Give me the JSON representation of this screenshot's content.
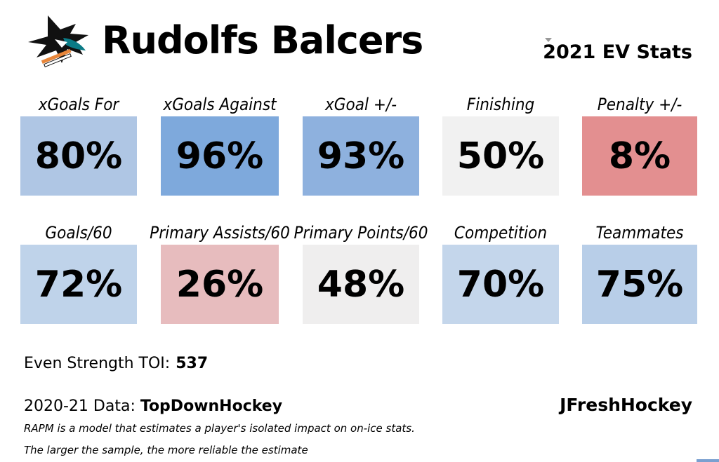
{
  "header": {
    "player_name": "Rudolfs Balcers",
    "season_title": "2021 EV Stats"
  },
  "colors": {
    "blue_strong": "#7ea9dc",
    "blue_medium": "#8eb1de",
    "blue_light": "#afc6e4",
    "blue_lighter": "#c2d4ea",
    "neutral": "#efefef",
    "red_strong": "#e38f90",
    "red_light": "#e7bcbe"
  },
  "chart_data": {
    "type": "table",
    "title": "2021 EV Stats",
    "unit": "percentile",
    "rows": [
      {
        "row": 1,
        "metrics": [
          {
            "label": "xGoals For",
            "value": 80,
            "display": "80%",
            "color": "#afc6e4"
          },
          {
            "label": "xGoals Against",
            "value": 96,
            "display": "96%",
            "color": "#7ea9dc"
          },
          {
            "label": "xGoal +/-",
            "value": 93,
            "display": "93%",
            "color": "#8eb1de"
          },
          {
            "label": "Finishing",
            "value": 50,
            "display": "50%",
            "color": "#f1f1f1"
          },
          {
            "label": "Penalty +/-",
            "value": 8,
            "display": "8%",
            "color": "#e38f90"
          }
        ]
      },
      {
        "row": 2,
        "metrics": [
          {
            "label": "Goals/60",
            "value": 72,
            "display": "72%",
            "color": "#bfd3ea"
          },
          {
            "label": "Primary Assists/60",
            "value": 26,
            "display": "26%",
            "color": "#e7bcbe"
          },
          {
            "label": "Primary Points/60",
            "value": 48,
            "display": "48%",
            "color": "#efeeee"
          },
          {
            "label": "Competition",
            "value": 70,
            "display": "70%",
            "color": "#c4d6eb"
          },
          {
            "label": "Teammates",
            "value": 75,
            "display": "75%",
            "color": "#b8cee8"
          }
        ]
      }
    ]
  },
  "footer": {
    "toi_label": "Even Strength TOI:",
    "toi_value": "537",
    "data_label": "2020-21 Data:",
    "data_source": "TopDownHockey",
    "brand": "JFreshHockey",
    "note_1": "RAPM is a model that estimates a player's isolated impact on on-ice stats.",
    "note_2": "The larger the sample, the more reliable the estimate"
  }
}
